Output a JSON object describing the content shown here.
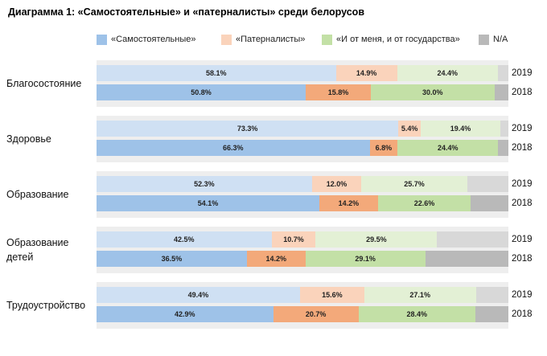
{
  "title": "Диаграмма 1: «Самостоятельные» и «патерналисты» среди белорусов",
  "colors": {
    "independent_light": "#cfe0f3",
    "independent_dark": "#9ec2e8",
    "paternalist_light": "#fad3bb",
    "paternalist_dark": "#f3a97a",
    "both_light": "#e3f0d5",
    "both_dark": "#c3e0a6",
    "na_light": "#d8d8d8",
    "na_dark": "#b9b9b9",
    "group_bg": "#eeeeee"
  },
  "chart_data": {
    "type": "bar",
    "orientation": "horizontal",
    "stacked": true,
    "title": "Диаграмма 1: «Самостоятельные» и «патерналисты» среди белорусов",
    "legend": [
      "«Самостоятельные»",
      "«Патерналисты»",
      "«И от меня, и от государства»",
      "N/A"
    ],
    "legend_position": "top",
    "categories": [
      "Благосостояние",
      "Здоровье",
      "Образование",
      "Образование детей",
      "Трудоустройство"
    ],
    "years": [
      "2019",
      "2018"
    ],
    "series": [
      {
        "name": "«Самостоятельные»",
        "values_2019": [
          58.1,
          73.3,
          52.3,
          42.5,
          49.4
        ],
        "values_2018": [
          50.8,
          66.3,
          54.1,
          36.5,
          42.9
        ],
        "labels_2019": [
          "58.1%",
          "73.3%",
          "52.3%",
          "42.5%",
          "49.4%"
        ],
        "labels_2018": [
          "50.8%",
          "66.3%",
          "54.1%",
          "36.5%",
          "42.9%"
        ]
      },
      {
        "name": "«Патерналисты»",
        "values_2019": [
          14.9,
          5.4,
          12.0,
          10.7,
          15.6
        ],
        "values_2018": [
          15.8,
          6.8,
          14.2,
          14.2,
          20.7
        ],
        "labels_2019": [
          "14.9%",
          "5.4%",
          "12.0%",
          "10.7%",
          "15.6%"
        ],
        "labels_2018": [
          "15.8%",
          "6.8%",
          "14.2%",
          "14.2%",
          "20.7%"
        ]
      },
      {
        "name": "«И от меня, и от государства»",
        "values_2019": [
          24.4,
          19.4,
          25.7,
          29.5,
          27.1
        ],
        "values_2018": [
          30.0,
          24.4,
          22.6,
          29.1,
          28.4
        ],
        "labels_2019": [
          "24.4%",
          "19.4%",
          "25.7%",
          "29.5%",
          "27.1%"
        ],
        "labels_2018": [
          "30.0%",
          "24.4%",
          "22.6%",
          "29.1%",
          "28.4%"
        ]
      },
      {
        "name": "N/A",
        "values_2019": [
          2.6,
          1.9,
          10.0,
          17.3,
          7.9
        ],
        "values_2018": [
          3.4,
          2.5,
          9.1,
          20.2,
          8.0
        ]
      }
    ],
    "xlim": [
      0,
      100
    ]
  }
}
